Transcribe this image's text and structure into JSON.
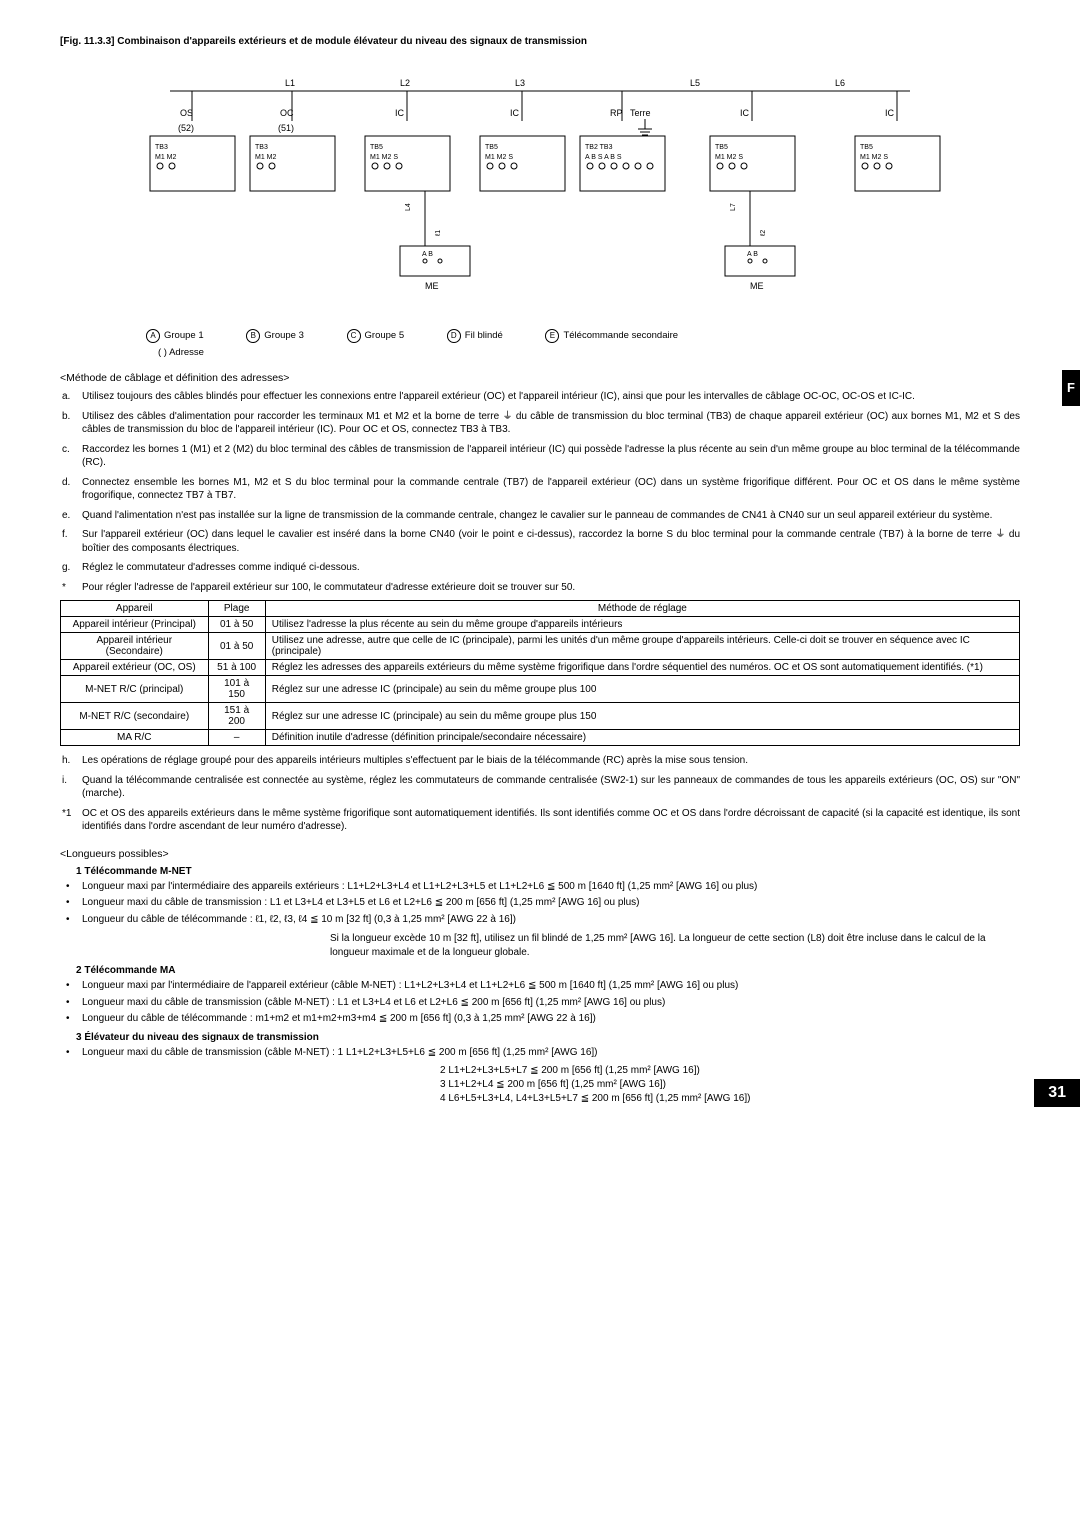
{
  "fig_title": "[Fig. 11.3.3] Combinaison d'appareils extérieurs et de module élévateur du niveau des signaux de transmission",
  "diagram": {
    "top_labels": [
      "L1",
      "L2",
      "L3",
      "L5",
      "L6"
    ],
    "boxes_row1": [
      {
        "name": "OS",
        "sub": "(52)",
        "tb": "TB3",
        "pins": "M1 M2"
      },
      {
        "name": "OC",
        "sub": "(51)",
        "tb": "TB3",
        "pins": "M1 M2"
      },
      {
        "name": "IC",
        "sub": "",
        "tb": "TB5",
        "pins": "M1 M2 S"
      },
      {
        "name": "IC",
        "sub": "",
        "tb": "TB5",
        "pins": "M1 M2 S"
      },
      {
        "name": "RP",
        "sub": "",
        "tb": "TB2 TB3",
        "pins": "A B S  A B S"
      },
      {
        "name": "IC",
        "sub": "",
        "tb": "TB5",
        "pins": "M1 M2 S"
      },
      {
        "name": "IC",
        "sub": "",
        "tb": "TB5",
        "pins": "M1 M2 S"
      }
    ],
    "terre_label": "Terre",
    "me_boxes": [
      "ME",
      "ME"
    ],
    "me_pins": "A  B",
    "side_labels_left": [
      "L4",
      "ℓ1"
    ],
    "side_labels_right": [
      "L7",
      "ℓ2"
    ]
  },
  "legend": {
    "A": "Groupe 1",
    "B": "Groupe 3",
    "C": "Groupe 5",
    "D": "Fil blindé",
    "E": "Télécommande secondaire",
    "paren": "( )   Adresse"
  },
  "method_title": "<Méthode de câblage et définition des adresses>",
  "letters": [
    {
      "k": "a.",
      "t": "Utilisez toujours des câbles blindés pour effectuer les connexions entre l'appareil extérieur (OC) et l'appareil intérieur (IC), ainsi que pour les intervalles de câblage OC-OC, OC-OS et IC-IC."
    },
    {
      "k": "b.",
      "t": "Utilisez des câbles d'alimentation pour raccorder les terminaux M1 et M2 et la borne de terre ⏚ du câble de transmission du bloc terminal (TB3) de chaque appareil extérieur (OC) aux bornes M1, M2 et S des câbles de transmission du bloc de l'appareil intérieur (IC). Pour OC et OS, connectez TB3 à TB3."
    },
    {
      "k": "c.",
      "t": "Raccordez les bornes 1 (M1) et 2 (M2) du bloc terminal des câbles de transmission de l'appareil intérieur (IC) qui possède l'adresse la plus récente au sein d'un même groupe au bloc terminal de la télécommande (RC)."
    },
    {
      "k": "d.",
      "t": "Connectez ensemble les bornes M1, M2 et S du bloc terminal pour la commande centrale (TB7) de l'appareil extérieur (OC) dans un système frigorifique différent. Pour OC et OS dans le même système frogorifique, connectez TB7 à TB7."
    },
    {
      "k": "e.",
      "t": "Quand l'alimentation n'est pas installée sur la ligne de transmission de la commande centrale, changez le cavalier sur le panneau de commandes de CN41 à CN40 sur un seul appareil extérieur du système."
    },
    {
      "k": "f.",
      "t": "Sur l'appareil extérieur (OC) dans lequel le cavalier est inséré dans la borne CN40 (voir le point e ci-dessus), raccordez la borne S du bloc terminal pour la commande centrale (TB7) à la borne de terre ⏚ du boîtier des composants électriques."
    },
    {
      "k": "g.",
      "t": "Réglez le commutateur d'adresses comme indiqué ci-dessous."
    },
    {
      "k": "*",
      "t": "Pour régler l'adresse de l'appareil extérieur sur 100, le commutateur d'adresse extérieure doit se trouver sur 50."
    }
  ],
  "table": {
    "headers": [
      "Appareil",
      "Plage",
      "Méthode de réglage"
    ],
    "rows": [
      [
        "Appareil intérieur (Principal)",
        "01 à 50",
        "Utilisez l'adresse la plus récente au sein du même groupe d'appareils intérieurs"
      ],
      [
        "Appareil intérieur (Secondaire)",
        "01 à 50",
        "Utilisez une adresse, autre que celle de IC (principale), parmi les unités d'un même groupe d'appareils intérieurs. Celle-ci doit se trouver en séquence avec IC (principale)"
      ],
      [
        "Appareil extérieur (OC, OS)",
        "51 à 100",
        "Réglez les adresses des appareils extérieurs du même système frigorifique dans l'ordre séquentiel des numéros. OC et OS sont automatiquement identifiés. (*1)"
      ],
      [
        "M-NET R/C (principal)",
        "101 à 150",
        "Réglez sur une adresse IC (principale) au sein du même groupe plus 100"
      ],
      [
        "M-NET R/C (secondaire)",
        "151 à 200",
        "Réglez sur une adresse IC (principale) au sein du même groupe plus 150"
      ],
      [
        "MA R/C",
        "–",
        "Définition inutile d'adresse (définition principale/secondaire nécessaire)"
      ]
    ]
  },
  "letters2": [
    {
      "k": "h.",
      "t": "Les opérations de réglage groupé pour des appareils intérieurs multiples s'effectuent par le biais de la télécommande (RC) après la mise sous tension."
    },
    {
      "k": "i.",
      "t": "Quand la télécommande centralisée est connectée au système, réglez les commutateurs de commande centralisée (SW2-1) sur les panneaux de commandes de tous les appareils extérieurs (OC, OS) sur \"ON\" (marche)."
    },
    {
      "k": "*1",
      "t": "OC et OS des appareils extérieurs dans le même système frigorifique sont automatiquement identifiés. Ils sont identifiés comme OC et OS dans l'ordre décroissant de capacité (si la capacité est identique, ils sont identifiés dans l'ordre ascendant de leur numéro d'adresse)."
    }
  ],
  "len_title": "<Longueurs possibles>",
  "mnet": {
    "title": "1   Télécommande M-NET",
    "items": [
      "Longueur maxi par l'intermédiaire des appareils extérieurs : L1+L2+L3+L4 et L1+L2+L3+L5 et L1+L2+L6 ≦ 500 m [1640 ft] (1,25 mm² [AWG 16] ou plus)",
      "Longueur maxi du câble de transmission : L1 et L3+L4 et L3+L5 et L6 et L2+L6 ≦ 200 m [656 ft] (1,25 mm² [AWG 16] ou plus)",
      "Longueur du câble de télécommande : ℓ1, ℓ2, ℓ3, ℓ4 ≦ 10 m [32 ft] (0,3 à 1,25 mm² [AWG 22 à 16])"
    ],
    "note": "Si la longueur excède 10 m [32 ft], utilisez un fil blindé de 1,25 mm² [AWG 16]. La longueur de cette section (L8) doit être incluse dans le calcul de la longueur maximale et de la longueur globale."
  },
  "ma": {
    "title": "2   Télécommande MA",
    "items": [
      "Longueur maxi par l'intermédiaire de l'appareil extérieur (câble M-NET) : L1+L2+L3+L4 et L1+L2+L6 ≦ 500 m [1640 ft] (1,25 mm² [AWG 16] ou plus)",
      "Longueur maxi du câble de transmission (câble M-NET) : L1 et L3+L4 et L6 et L2+L6 ≦ 200 m [656 ft] (1,25 mm² [AWG 16] ou plus)",
      "Longueur du câble de télécommande : m1+m2 et m1+m2+m3+m4 ≦ 200 m [656 ft] (0,3 à 1,25 mm² [AWG 22 à 16])"
    ]
  },
  "elev": {
    "title": "3   Élévateur du niveau des signaux de transmission",
    "lead": "Longueur maxi du câble de transmission (câble M-NET) : ",
    "items": [
      "1  L1+L2+L3+L5+L6 ≦ 200 m [656 ft] (1,25 mm² [AWG 16])",
      "2  L1+L2+L3+L5+L7 ≦ 200 m [656 ft] (1,25 mm² [AWG 16])",
      "3  L1+L2+L4 ≦ 200 m [656 ft] (1,25 mm² [AWG 16])",
      "4  L6+L5+L3+L4, L4+L3+L5+L7 ≦ 200 m [656 ft] (1,25 mm² [AWG 16])"
    ]
  },
  "side_tab": "F",
  "page": "31"
}
